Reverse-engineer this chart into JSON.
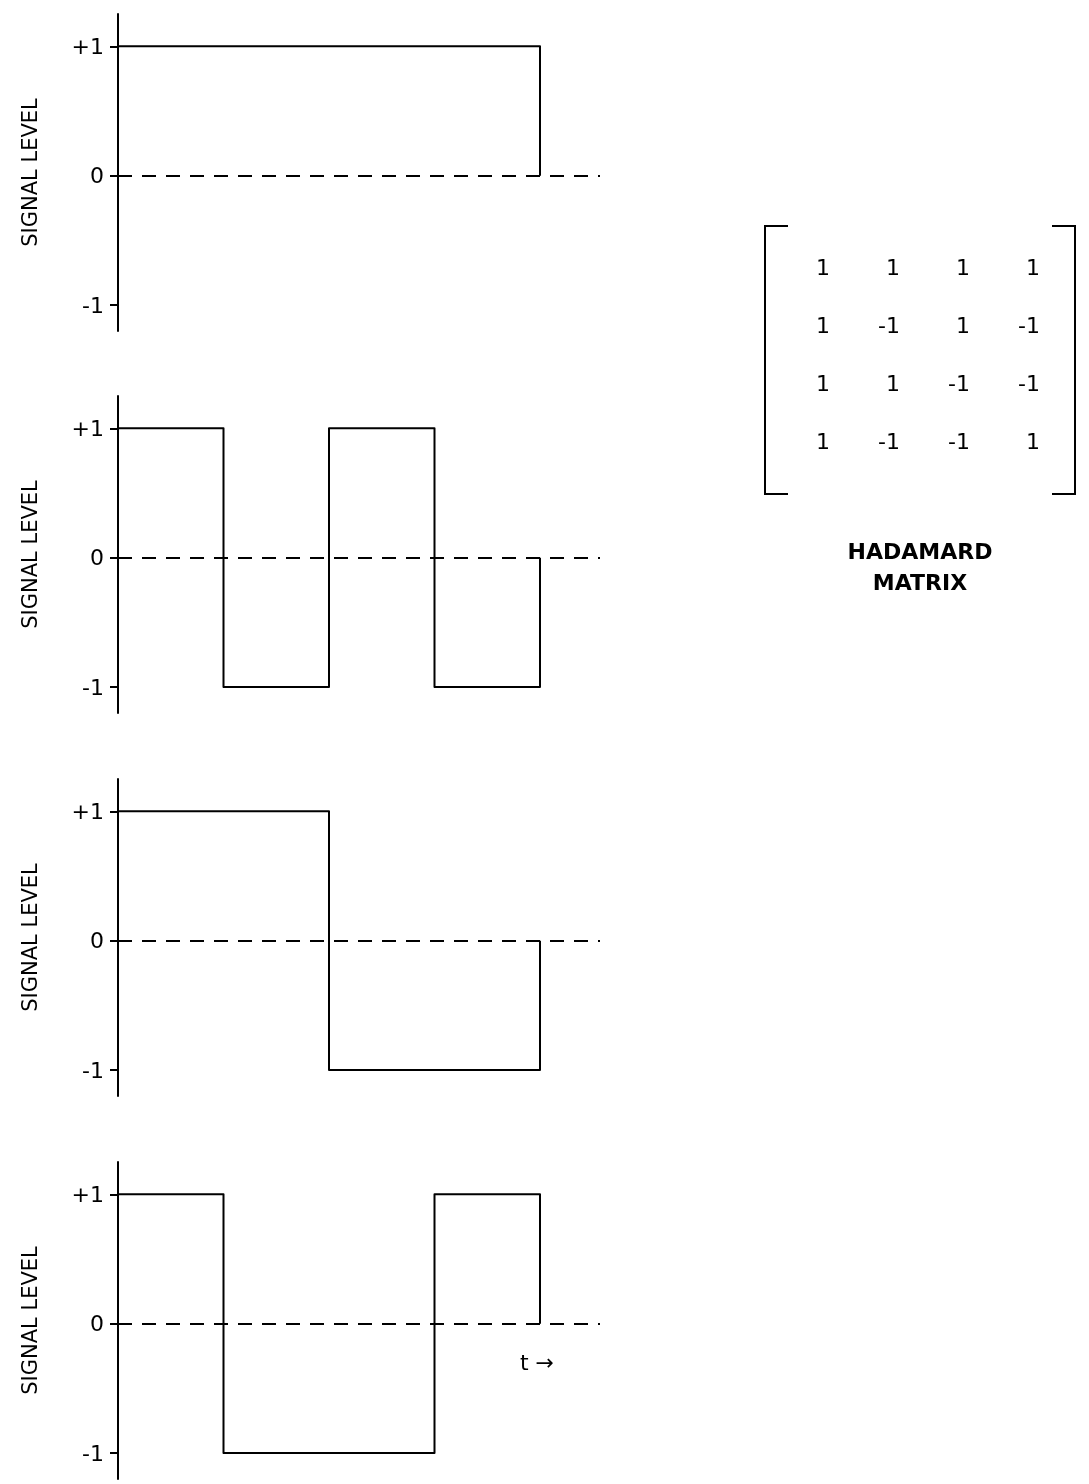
{
  "chart_data": [
    {
      "type": "step",
      "ylabel": "SIGNAL LEVEL",
      "categories": [
        null,
        null,
        null,
        null,
        null
      ],
      "values": [
        1,
        1,
        1,
        1,
        0
      ],
      "color": "#000000",
      "ylim": [
        -1.2,
        1.25
      ],
      "yticks": [
        {
          "value": -1,
          "label": "-1"
        },
        {
          "value": 0,
          "label": "0"
        },
        {
          "value": 1,
          "label": "+1"
        }
      ],
      "tick_labels": "y",
      "marker": "none",
      "line_style": "solid",
      "ref_lines": [
        {
          "axis": "y",
          "value": 0,
          "line_style": "dashed",
          "color": "#000000"
        }
      ]
    },
    {
      "type": "step",
      "ylabel": "SIGNAL LEVEL",
      "categories": [
        null,
        null,
        null,
        null,
        null
      ],
      "values": [
        1,
        -1,
        1,
        -1,
        0
      ],
      "color": "#000000",
      "ylim": [
        -1.2,
        1.25
      ],
      "yticks": [
        {
          "value": -1,
          "label": "-1"
        },
        {
          "value": 0,
          "label": "0"
        },
        {
          "value": 1,
          "label": "+1"
        }
      ],
      "tick_labels": "y",
      "marker": "none",
      "line_style": "solid",
      "ref_lines": [
        {
          "axis": "y",
          "value": 0,
          "line_style": "dashed",
          "color": "#000000"
        }
      ]
    },
    {
      "type": "step",
      "ylabel": "SIGNAL LEVEL",
      "categories": [
        null,
        null,
        null,
        null,
        null
      ],
      "values": [
        1,
        1,
        -1,
        -1,
        0
      ],
      "color": "#000000",
      "ylim": [
        -1.2,
        1.25
      ],
      "yticks": [
        {
          "value": -1,
          "label": "-1"
        },
        {
          "value": 0,
          "label": "0"
        },
        {
          "value": 1,
          "label": "+1"
        }
      ],
      "tick_labels": "y",
      "marker": "none",
      "line_style": "solid",
      "ref_lines": [
        {
          "axis": "y",
          "value": 0,
          "line_style": "dashed",
          "color": "#000000"
        }
      ]
    },
    {
      "type": "step",
      "ylabel": "SIGNAL LEVEL",
      "xlabel": "t →",
      "categories": [
        null,
        null,
        null,
        null,
        null
      ],
      "values": [
        1,
        -1,
        -1,
        1,
        0
      ],
      "color": "#000000",
      "ylim": [
        -1.2,
        1.25
      ],
      "yticks": [
        {
          "value": -1,
          "label": "-1"
        },
        {
          "value": 0,
          "label": "0"
        },
        {
          "value": 1,
          "label": "+1"
        }
      ],
      "tick_labels": "y",
      "marker": "none",
      "line_style": "solid",
      "ref_lines": [
        {
          "axis": "y",
          "value": 0,
          "line_style": "dashed",
          "color": "#000000"
        }
      ]
    },
    {
      "type": "other",
      "title": "HADAMARD MATRIX",
      "annotations": [
        "1",
        "1",
        "1",
        "1",
        "1",
        "-1",
        "1",
        "-1",
        "1",
        "1",
        "-1",
        "-1",
        "1",
        "-1",
        "-1",
        "1"
      ]
    }
  ]
}
